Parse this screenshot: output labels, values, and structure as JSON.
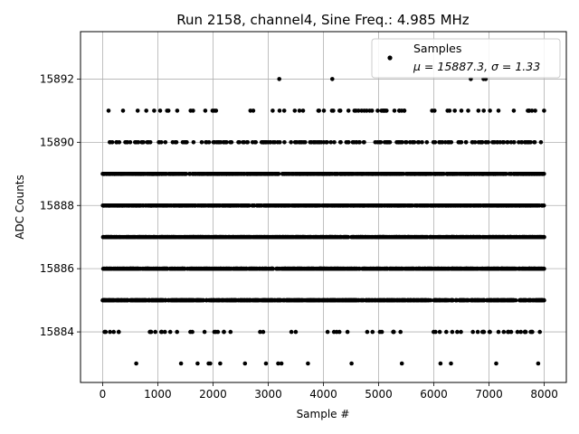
{
  "chart_data": {
    "type": "scatter",
    "title": "Run 2158, channel4, Sine Freq.: 4.985 MHz",
    "xlabel": "Sample #",
    "ylabel": "ADC Counts",
    "xlim": [
      -400,
      8400
    ],
    "ylim": [
      15882.4,
      15893.5
    ],
    "xticks": [
      0,
      1000,
      2000,
      3000,
      4000,
      5000,
      6000,
      7000,
      8000
    ],
    "yticks": [
      15884,
      15886,
      15888,
      15890,
      15892
    ],
    "grid": true,
    "legend": {
      "placement": "top-right",
      "entries": [
        {
          "label": "Samples",
          "sublabel": "μ = 15887.3, σ = 1.33",
          "marker": "filled-circle",
          "color": "#000000"
        }
      ]
    },
    "series": [
      {
        "name": "Samples",
        "color": "#000000",
        "n_samples": 8000,
        "x_range": [
          0,
          7999
        ],
        "levels": [
          {
            "y": 15885,
            "occupancy": "dense"
          },
          {
            "y": 15886,
            "occupancy": "dense"
          },
          {
            "y": 15887,
            "occupancy": "dense"
          },
          {
            "y": 15888,
            "occupancy": "dense"
          },
          {
            "y": 15889,
            "occupancy": "dense"
          },
          {
            "y": 15890,
            "occupancy": "moderate"
          },
          {
            "y": 15884,
            "occupancy": "sparse"
          },
          {
            "y": 15891,
            "occupancy": "sparse"
          }
        ],
        "outliers": [
          {
            "x": 610,
            "y": 15883
          },
          {
            "x": 1420,
            "y": 15883
          },
          {
            "x": 1720,
            "y": 15883
          },
          {
            "x": 1920,
            "y": 15883
          },
          {
            "x": 1950,
            "y": 15883
          },
          {
            "x": 2130,
            "y": 15883
          },
          {
            "x": 2580,
            "y": 15883
          },
          {
            "x": 2960,
            "y": 15883
          },
          {
            "x": 3180,
            "y": 15883
          },
          {
            "x": 3240,
            "y": 15883
          },
          {
            "x": 3720,
            "y": 15883
          },
          {
            "x": 4510,
            "y": 15883
          },
          {
            "x": 5420,
            "y": 15883
          },
          {
            "x": 6120,
            "y": 15883
          },
          {
            "x": 6310,
            "y": 15883
          },
          {
            "x": 7130,
            "y": 15883
          },
          {
            "x": 7890,
            "y": 15883
          },
          {
            "x": 3200,
            "y": 15892
          },
          {
            "x": 4160,
            "y": 15892
          },
          {
            "x": 6670,
            "y": 15892
          },
          {
            "x": 6900,
            "y": 15892
          },
          {
            "x": 6940,
            "y": 15892
          }
        ]
      }
    ]
  }
}
